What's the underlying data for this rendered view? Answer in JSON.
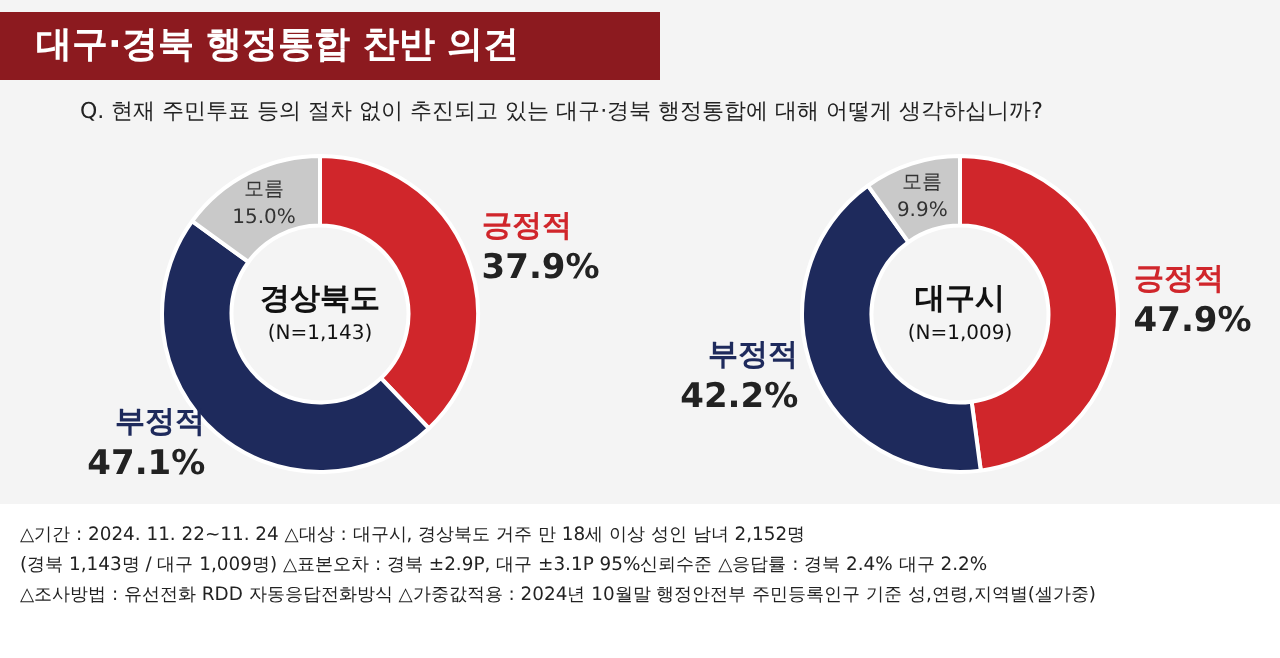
{
  "chart_data": [
    {
      "type": "donut",
      "title": "대구·경북 행정통합 찬반 의견",
      "subtitle": "Q. 현재 주민투표 등의 절차 없이 추진되고 있는 대구·경북 행정통합에 대해 어떻게 생각하십니까?",
      "categories": [
        "긍정적",
        "부정적",
        "모름"
      ],
      "values": [
        37.9,
        47.1,
        15.0
      ],
      "value_labels": [
        "37.9%",
        "47.1%",
        "15.0%"
      ],
      "colors": [
        "#d0262b",
        "#1e2a5c",
        "#c9c9c9"
      ],
      "legend": false,
      "annotations": [
        "경상북도",
        "(N=1,143)",
        "△기간 : 2024. 11. 22~11. 24   △대상 : 대구시, 경상북도 거주 만 18세 이상 성인 남녀 2,152명",
        "(경북 1,143명 / 대구 1,009명)   △표본오차 : 경북 ±2.9P, 대구 ±3.1P 95%신뢰수준   △응답률 : 경북 2.4%   대구 2.2%",
        "△조사방법 : 유선전화 RDD 자동응답전화방식   △가중값적용 : 2024년 10월말 행정안전부 주민등록인구 기준 성,연령,지역별(셀가중)"
      ]
    },
    {
      "type": "donut",
      "categories": [
        "긍정적",
        "부정적",
        "모름"
      ],
      "values": [
        47.9,
        42.2,
        9.9
      ],
      "value_labels": [
        "47.9%",
        "42.2%",
        "9.9%"
      ],
      "colors": [
        "#d0262b",
        "#1e2a5c",
        "#c9c9c9"
      ],
      "legend": false,
      "annotations": [
        "대구시",
        "(N=1,009)"
      ]
    }
  ]
}
